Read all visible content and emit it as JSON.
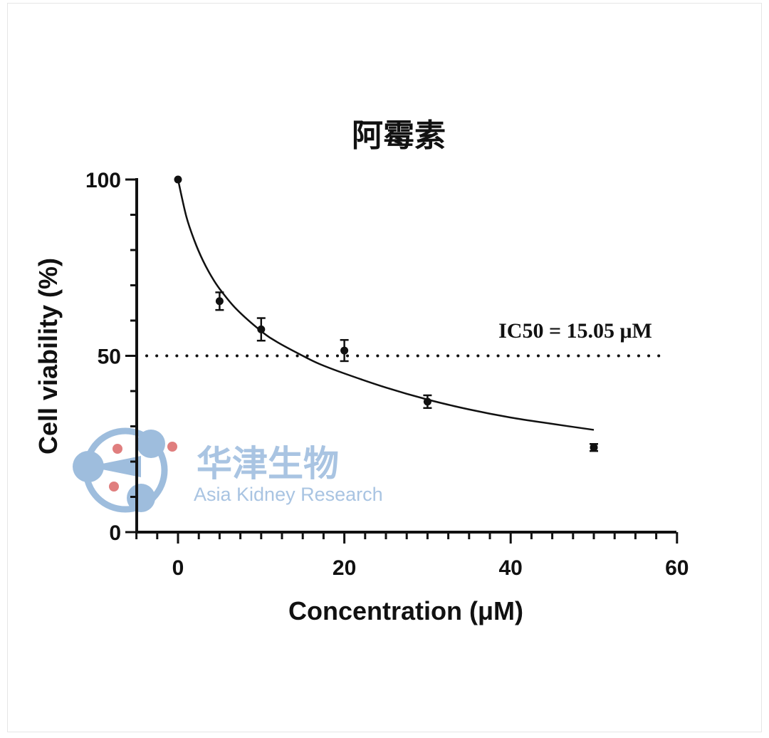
{
  "chart_data": {
    "type": "scatter",
    "title": "阿霉素",
    "xlabel": "Concentration (μM)",
    "ylabel": "Cell viability (%)",
    "xlim": [
      -5,
      60
    ],
    "ylim": [
      0,
      100
    ],
    "x_ticks": [
      "0",
      "20",
      "40",
      "60"
    ],
    "y_ticks": [
      "0",
      "50",
      "100"
    ],
    "series": [
      {
        "points": [
          {
            "x": 0,
            "y": 100,
            "err": 0
          },
          {
            "x": 5,
            "y": 65.5,
            "err": 2.5
          },
          {
            "x": 10,
            "y": 57.5,
            "err": 3.2
          },
          {
            "x": 20,
            "y": 51.5,
            "err": 3.0
          },
          {
            "x": 30,
            "y": 37.0,
            "err": 1.8
          },
          {
            "x": 50,
            "y": 24.0,
            "err": 1.0
          }
        ]
      }
    ],
    "fit_curve": {
      "x": [
        0,
        1,
        2,
        3,
        4,
        5,
        7,
        10,
        12,
        15,
        17,
        20,
        25,
        30,
        35,
        40,
        45,
        50
      ],
      "y": [
        100,
        89.5,
        82.5,
        77,
        72.6,
        69,
        63.3,
        57,
        53.8,
        50,
        47.7,
        45,
        41,
        37.6,
        34.8,
        32.5,
        30.7,
        29
      ]
    },
    "reference_line": {
      "y": 50,
      "style": "dotted"
    },
    "annotation": "IC50 = 15.05 μM"
  },
  "watermark": {
    "name_cn": "华津生物",
    "name_en": "Asia Kidney Research",
    "color_blue": "#9ebddd",
    "color_red": "#e07e7e"
  }
}
